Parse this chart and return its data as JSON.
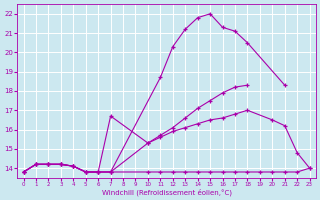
{
  "xlabel": "Windchill (Refroidissement éolien,°C)",
  "xlim": [
    -0.5,
    23.5
  ],
  "ylim": [
    13.5,
    22.5
  ],
  "yticks": [
    14,
    15,
    16,
    17,
    18,
    19,
    20,
    21,
    22
  ],
  "xticks": [
    0,
    1,
    2,
    3,
    4,
    5,
    6,
    7,
    8,
    9,
    10,
    11,
    12,
    13,
    14,
    15,
    16,
    17,
    18,
    19,
    20,
    21,
    22,
    23
  ],
  "xtick_labels": [
    "0",
    "1",
    "2",
    "3",
    "4",
    "5",
    "6",
    "7",
    "8",
    "9",
    "10",
    "11",
    "12",
    "13",
    "14",
    "15",
    "16",
    "17",
    "18",
    "19",
    "20",
    "21",
    "22",
    "23"
  ],
  "bg_color": "#cce8f0",
  "grid_color": "#ffffff",
  "line_color": "#aa00aa",
  "lines": [
    {
      "x": [
        0,
        1,
        2,
        3,
        4,
        5,
        6,
        7,
        10,
        11,
        12,
        13,
        14,
        15,
        16,
        17,
        18,
        19,
        20,
        21,
        22,
        23
      ],
      "y": [
        13.8,
        14.2,
        14.2,
        14.2,
        14.1,
        13.8,
        13.8,
        13.8,
        13.8,
        13.8,
        13.8,
        13.8,
        13.8,
        13.8,
        13.8,
        13.8,
        13.8,
        13.8,
        13.8,
        13.8,
        13.8,
        14.0
      ]
    },
    {
      "x": [
        0,
        1,
        2,
        3,
        4,
        5,
        6,
        7,
        10,
        11,
        12,
        13,
        14,
        15,
        16,
        17,
        18,
        20,
        21,
        22,
        23
      ],
      "y": [
        13.8,
        14.2,
        14.2,
        14.2,
        14.1,
        13.8,
        13.8,
        16.7,
        15.3,
        15.6,
        15.9,
        16.1,
        16.3,
        16.5,
        16.6,
        16.8,
        17.0,
        16.5,
        16.2,
        14.8,
        14.0
      ]
    },
    {
      "x": [
        0,
        1,
        2,
        3,
        4,
        5,
        6,
        7,
        10,
        11,
        12,
        13,
        14,
        15,
        16,
        17,
        18
      ],
      "y": [
        13.8,
        14.2,
        14.2,
        14.2,
        14.1,
        13.8,
        13.8,
        13.8,
        15.3,
        15.7,
        16.1,
        16.6,
        17.1,
        17.5,
        17.9,
        18.2,
        18.3
      ]
    },
    {
      "x": [
        0,
        1,
        2,
        3,
        4,
        5,
        6,
        7,
        11,
        12,
        13,
        14,
        15,
        16,
        17,
        18,
        21
      ],
      "y": [
        13.8,
        14.2,
        14.2,
        14.2,
        14.1,
        13.8,
        13.8,
        13.8,
        18.7,
        20.3,
        21.2,
        21.8,
        22.0,
        21.3,
        21.1,
        20.5,
        18.3
      ]
    }
  ]
}
